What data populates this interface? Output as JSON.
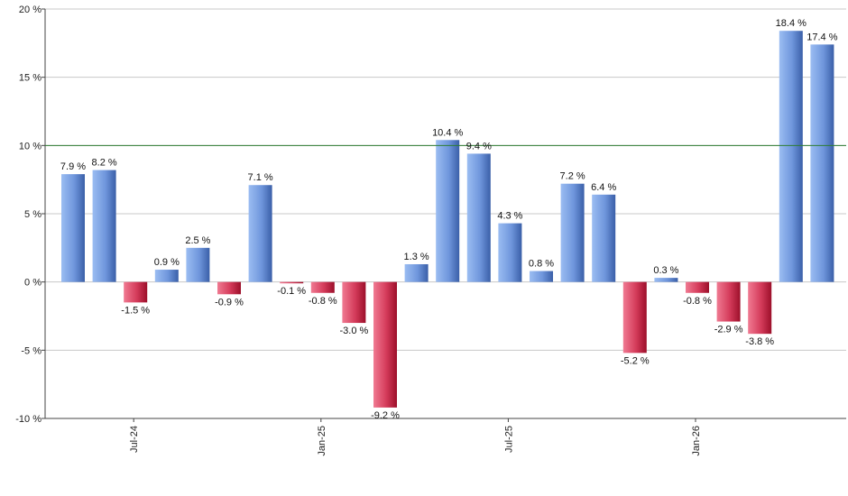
{
  "chart_data": {
    "type": "bar",
    "values": [
      7.9,
      8.2,
      -1.5,
      0.9,
      2.5,
      -0.9,
      7.1,
      -0.1,
      -0.8,
      -3.0,
      -9.2,
      1.3,
      10.4,
      9.4,
      4.3,
      0.8,
      7.2,
      6.4,
      -5.2,
      0.3,
      -0.8,
      -2.9,
      -3.8,
      18.4,
      17.4
    ],
    "data_labels": [
      "7.9 %",
      "8.2 %",
      "-1.5 %",
      "0.9 %",
      "2.5 %",
      "-0.9 %",
      "7.1 %",
      "-0.1 %",
      "-0.8 %",
      "-3.0 %",
      "-9.2 %",
      "1.3 %",
      "10.4 %",
      "9.4 %",
      "4.3 %",
      "0.8 %",
      "7.2 %",
      "6.4 %",
      "-5.2 %",
      "0.3 %",
      "-0.8 %",
      "-2.9 %",
      "-3.8 %",
      "18.4 %",
      "17.4 %"
    ],
    "ylim": [
      -10,
      20
    ],
    "yticks": [
      20,
      15,
      10,
      5,
      0,
      -5,
      -10
    ],
    "ytick_labels": [
      "20 %",
      "15 %",
      "10 %",
      "5 %",
      "0 %",
      "-5 %",
      "-10 %"
    ],
    "xtick_labels": [
      {
        "label": "Jul-24",
        "bar_index": 2
      },
      {
        "label": "Jan-25",
        "bar_index": 8
      },
      {
        "label": "Jul-25",
        "bar_index": 14
      },
      {
        "label": "Jan-26",
        "bar_index": 20
      }
    ],
    "reference_line": {
      "value": 10,
      "color": "#2e7d32"
    },
    "grid": true,
    "colors": {
      "positive_light": "#a6c3f0",
      "positive_dark": "#3f66b3",
      "negative_light": "#ee6b86",
      "negative_dark": "#a8142f",
      "grid": "#c8c8c8",
      "axis": "#444444"
    }
  }
}
